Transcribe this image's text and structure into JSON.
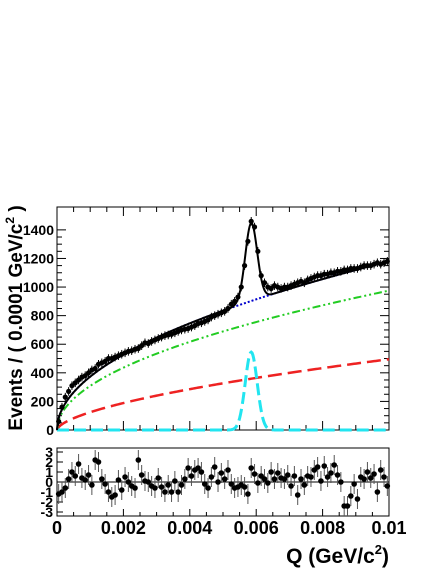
{
  "chart_data": [
    {
      "type": "scatter",
      "panel": "main",
      "ylabel": "Events / ( 0.0001 GeV/c",
      "ylabel_sup": "2",
      "ylabel_tail": " )",
      "xlim": [
        0,
        0.01
      ],
      "ylim": [
        0,
        1560
      ],
      "yticks": [
        0,
        200,
        400,
        600,
        800,
        1000,
        1200,
        1400
      ],
      "ytick_labels": [
        "0",
        "200",
        "400",
        "600",
        "800",
        "1000",
        "1200",
        "1400"
      ],
      "grid": false,
      "series": [
        {
          "kind": "data points with error bars",
          "x": [
            5e-05,
            0.00015,
            0.00025,
            0.00035,
            0.00045,
            0.00055,
            0.00065,
            0.00075,
            0.00085,
            0.00095,
            0.00105,
            0.00115,
            0.00125,
            0.00135,
            0.00145,
            0.00155,
            0.00165,
            0.00175,
            0.00185,
            0.00195,
            0.00205,
            0.00215,
            0.00225,
            0.00235,
            0.00245,
            0.00255,
            0.00265,
            0.00275,
            0.00285,
            0.00295,
            0.00305,
            0.00315,
            0.00325,
            0.00335,
            0.00345,
            0.00355,
            0.00365,
            0.00375,
            0.00385,
            0.00395,
            0.00405,
            0.00415,
            0.00425,
            0.00435,
            0.00445,
            0.00455,
            0.00465,
            0.00475,
            0.00485,
            0.00495,
            0.00505,
            0.00515,
            0.00525,
            0.00535,
            0.00545,
            0.00555,
            0.00565,
            0.00575,
            0.00585,
            0.00595,
            0.00605,
            0.00615,
            0.00625,
            0.00635,
            0.00645,
            0.00655,
            0.00665,
            0.00675,
            0.00685,
            0.00695,
            0.00705,
            0.00715,
            0.00725,
            0.00735,
            0.00745,
            0.00755,
            0.00765,
            0.00775,
            0.00785,
            0.00795,
            0.00805,
            0.00815,
            0.00825,
            0.00835,
            0.00845,
            0.00855,
            0.00865,
            0.00875,
            0.00885,
            0.00895,
            0.00905,
            0.00915,
            0.00925,
            0.00935,
            0.00945,
            0.00955,
            0.00965,
            0.00975,
            0.00985,
            0.00995
          ],
          "y": [
            60,
            160,
            230,
            270,
            310,
            330,
            350,
            370,
            380,
            400,
            420,
            430,
            460,
            470,
            480,
            500,
            500,
            510,
            520,
            530,
            540,
            550,
            555,
            565,
            570,
            590,
            610,
            605,
            620,
            630,
            640,
            650,
            660,
            665,
            670,
            680,
            690,
            700,
            705,
            710,
            720,
            730,
            745,
            750,
            760,
            770,
            790,
            800,
            810,
            820,
            830,
            850,
            880,
            900,
            930,
            1000,
            1150,
            1320,
            1460,
            1420,
            1250,
            1080,
            1030,
            1000,
            990,
            1010,
            1000,
            990,
            1000,
            1000,
            1010,
            1020,
            1030,
            1040,
            1030,
            1050,
            1060,
            1070,
            1080,
            1080,
            1090,
            1090,
            1100,
            1100,
            1110,
            1110,
            1120,
            1120,
            1130,
            1130,
            1130,
            1140,
            1150,
            1150,
            1150,
            1160,
            1170,
            1160,
            1170,
            1180
          ],
          "yerr": 30
        },
        {
          "kind": "total fit",
          "style": "solid",
          "color": "#000000"
        },
        {
          "kind": "background fit",
          "style": "dotted",
          "color": "#0000cc"
        },
        {
          "kind": "background component",
          "style": "dash-dot",
          "color": "#22cc22"
        },
        {
          "kind": "background component",
          "style": "long-dash",
          "color": "#ee2222"
        },
        {
          "kind": "signal peak",
          "style": "long-dash",
          "color": "#22e5f0",
          "peak_x": 0.00585,
          "peak_y": 545
        }
      ]
    },
    {
      "type": "scatter",
      "panel": "pull",
      "xlabel": "Q (GeV/c",
      "xlabel_sup": "2",
      "xlabel_tail": ")",
      "xlim": [
        0,
        0.01
      ],
      "ylim": [
        -3.4,
        3.4
      ],
      "yticks": [
        3,
        2,
        1,
        0,
        -1,
        -2,
        -3
      ],
      "ytick_labels": [
        "3",
        "2",
        "1",
        "0",
        "-1",
        "-2",
        "-3"
      ],
      "xticks": [
        0,
        0.002,
        0.004,
        0.006,
        0.008,
        0.01
      ],
      "xtick_labels": [
        "0",
        "0.002",
        "0.004",
        "0.006",
        "0.008",
        "0.01"
      ],
      "series": [
        {
          "kind": "pulls with error bars",
          "x": [
            5e-05,
            0.00015,
            0.00025,
            0.00035,
            0.00045,
            0.00055,
            0.00065,
            0.00075,
            0.00085,
            0.00095,
            0.00105,
            0.00115,
            0.00125,
            0.00135,
            0.00145,
            0.00155,
            0.00165,
            0.00175,
            0.00185,
            0.00195,
            0.00205,
            0.00215,
            0.00225,
            0.00235,
            0.00245,
            0.00255,
            0.00265,
            0.00275,
            0.00285,
            0.00295,
            0.00305,
            0.00315,
            0.00325,
            0.00335,
            0.00345,
            0.00355,
            0.00365,
            0.00375,
            0.00385,
            0.00395,
            0.00405,
            0.00415,
            0.00425,
            0.00435,
            0.00445,
            0.00455,
            0.00465,
            0.00475,
            0.00485,
            0.00495,
            0.00505,
            0.00515,
            0.00525,
            0.00535,
            0.00545,
            0.00555,
            0.00565,
            0.00575,
            0.00585,
            0.00595,
            0.00605,
            0.00615,
            0.00625,
            0.00635,
            0.00645,
            0.00655,
            0.00665,
            0.00675,
            0.00685,
            0.00695,
            0.00705,
            0.00715,
            0.00725,
            0.00735,
            0.00745,
            0.00755,
            0.00765,
            0.00775,
            0.00785,
            0.00795,
            0.00805,
            0.00815,
            0.00825,
            0.00835,
            0.00845,
            0.00855,
            0.00865,
            0.00875,
            0.00885,
            0.00895,
            0.00905,
            0.00915,
            0.00925,
            0.00935,
            0.00945,
            0.00955,
            0.00965,
            0.00975,
            0.00985,
            0.00995
          ],
          "y": [
            -1.2,
            -1.0,
            -0.6,
            0.3,
            1.0,
            0.6,
            1.8,
            0.4,
            0.2,
            0.7,
            -0.3,
            2.2,
            2.0,
            0.3,
            -0.2,
            -1.0,
            -1.5,
            -1.3,
            0.2,
            -0.8,
            0.5,
            0.0,
            -0.4,
            -0.6,
            2.2,
            0.7,
            0.1,
            0.0,
            -0.4,
            -0.6,
            0.4,
            -0.5,
            -1.0,
            -0.3,
            -1.0,
            0.1,
            -1.0,
            -0.3,
            0.3,
            1.4,
            0.6,
            1.2,
            1.4,
            1.0,
            -0.2,
            -0.6,
            0.5,
            1.5,
            0.0,
            0.9,
            0.3,
            1.2,
            -0.2,
            -0.6,
            -0.5,
            -0.3,
            -0.5,
            -1.2,
            1.4,
            0.8,
            -0.1,
            0.6,
            0.3,
            -0.1,
            1.0,
            0.3,
            0.9,
            0.4,
            0.3,
            0.7,
            -0.4,
            0.6,
            -1.3,
            0.3,
            -0.3,
            0.6,
            0.5,
            1.2,
            1.5,
            0.1,
            1.6,
            0.5,
            0.9,
            1.7,
            0.7,
            0.0,
            -2.4,
            -2.4,
            -1.4,
            -0.2,
            -1.7,
            0.5,
            0.3,
            1.0,
            0.4,
            0.8,
            -1.0,
            1.2,
            0.5,
            -0.4
          ],
          "yerr": 1
        }
      ]
    }
  ]
}
